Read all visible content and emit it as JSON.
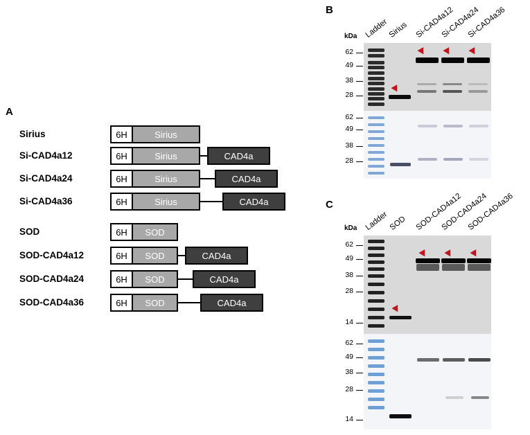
{
  "panel_a": {
    "letter": "A",
    "tag_label": "6H",
    "linker_label": "CAD4a",
    "constructs": [
      {
        "name": "Sirius",
        "domain": "Sirius",
        "has_cad": false
      },
      {
        "name": "Si-CAD4a12",
        "domain": "Sirius",
        "has_cad": true
      },
      {
        "name": "Si-CAD4a24",
        "domain": "Sirius",
        "has_cad": true
      },
      {
        "name": "Si-CAD4a36",
        "domain": "Sirius",
        "has_cad": true
      },
      {
        "name": "SOD",
        "domain": "SOD",
        "has_cad": false
      },
      {
        "name": "SOD-CAD4a12",
        "domain": "SOD",
        "has_cad": true
      },
      {
        "name": "SOD-CAD4a24",
        "domain": "SOD",
        "has_cad": true
      },
      {
        "name": "SOD-CAD4a36",
        "domain": "SOD",
        "has_cad": true
      }
    ]
  },
  "panel_b": {
    "letter": "B",
    "unit": "kDa",
    "lanes": [
      "Ladder",
      "Sirius",
      "Si-CAD4a12",
      "Si-CAD4a24",
      "Si-CAD4a36"
    ],
    "markers_top": [
      "62",
      "49",
      "38",
      "28"
    ],
    "markers_bottom": [
      "62",
      "49",
      "38",
      "28"
    ]
  },
  "panel_c": {
    "letter": "C",
    "unit": "kDa",
    "lanes": [
      "Ladder",
      "SOD",
      "SOD-CAD4a12",
      "SOD-CAD4a24",
      "SOD-CAD4a36"
    ],
    "markers_top": [
      "62",
      "49",
      "38",
      "28",
      "14"
    ],
    "markers_bottom": [
      "62",
      "49",
      "38",
      "28",
      "14"
    ]
  },
  "colors": {
    "arrow": "#c0151b",
    "domain_box": "#a8a8a8",
    "cad_box": "#3f3f3f"
  }
}
